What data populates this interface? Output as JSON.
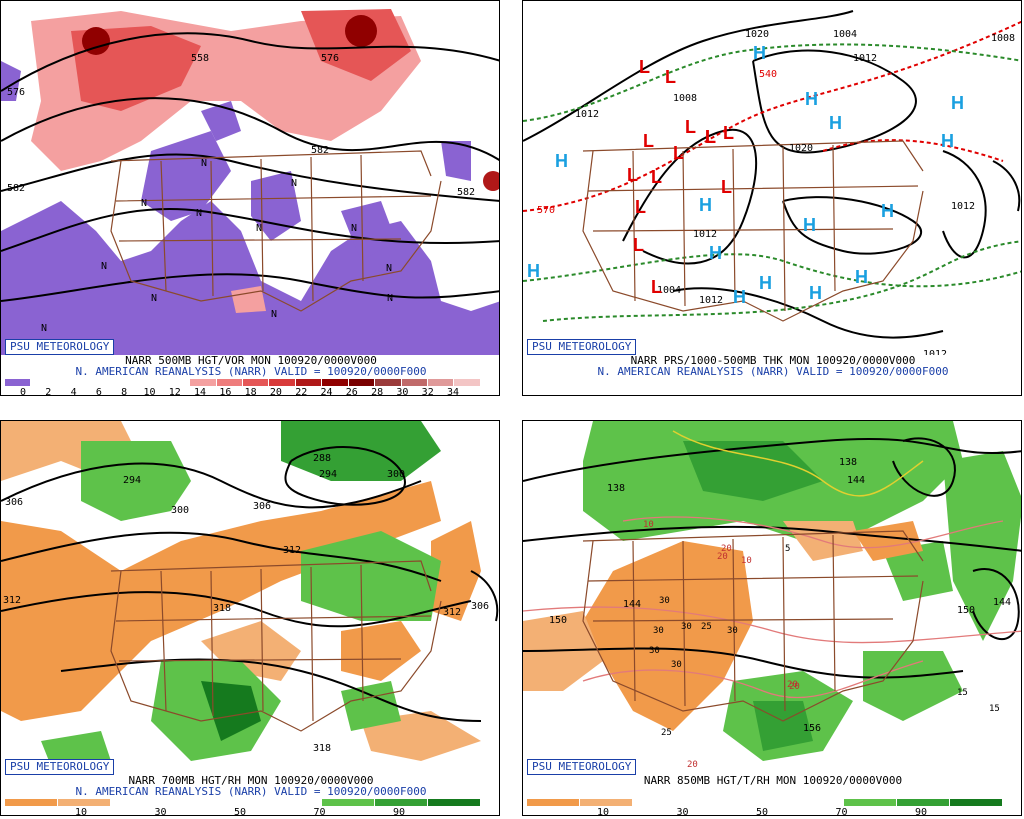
{
  "badge": "PSU METEOROLOGY",
  "colors": {
    "vort_ramp": [
      "#8a63d2",
      "#ffffff",
      "#ffffff",
      "#ffffff",
      "#ffffff",
      "#ffffff",
      "#ffffff",
      "#f4a0a0",
      "#ee7c7c",
      "#e55656",
      "#d83a3a",
      "#b01818",
      "#900000",
      "#7a0000",
      "#9a3a3a",
      "#c06a6a",
      "#e09a9a",
      "#f3c5c5"
    ],
    "rh_ramp": [
      "#f19a4a",
      "#f3b074",
      "#ffffff",
      "#ffffff",
      "#ffffff",
      "#ffffff",
      "#5ec24a",
      "#34a034",
      "#157a1e"
    ],
    "border": "#8b4a2b",
    "contour": "#000000",
    "low": "#e00000",
    "high": "#1aa0e0"
  },
  "panels": [
    {
      "caption1": "NARR 500MB HGT/VOR MON 100920/0000V000",
      "caption2": "N. AMERICAN REANALYSIS (NARR) VALID = 100920/0000F000",
      "colorbar_ticks": [
        "0",
        "2",
        "4",
        "6",
        "8",
        "10",
        "12",
        "14",
        "16",
        "18",
        "20",
        "22",
        "24",
        "26",
        "28",
        "30",
        "32",
        "34"
      ],
      "contour_labels": [
        "558",
        "576",
        "582",
        "582",
        "582",
        "576"
      ],
      "markers": [
        "N",
        "N",
        "N",
        "N",
        "N",
        "N",
        "N",
        "N",
        "N",
        "N",
        "N",
        "N"
      ]
    },
    {
      "caption1": "NARR PRS/1000-500MB THK MON 100920/0000V000",
      "caption2": "N. AMERICAN REANALYSIS (NARR) VALID = 100920/0000F000",
      "contour_labels": [
        "1020",
        "1004",
        "1012",
        "1012",
        "1008",
        "1020",
        "1008",
        "1012",
        "1012",
        "1004",
        "1012",
        "1012",
        "540",
        "570"
      ],
      "lows": [
        "L",
        "L",
        "L",
        "L",
        "L",
        "L",
        "L",
        "L",
        "L",
        "L",
        "L",
        "L",
        "L",
        "L"
      ],
      "highs": [
        "H",
        "H",
        "H",
        "H",
        "H",
        "H",
        "H",
        "H",
        "H",
        "H",
        "H",
        "H",
        "H",
        "H",
        "H"
      ]
    },
    {
      "caption1": "NARR 700MB HGT/RH MON 100920/0000V000",
      "caption2": "N. AMERICAN REANALYSIS (NARR) VALID = 100920/0000F000",
      "colorbar_ticks": [
        "10",
        "30",
        "50",
        "70",
        "90"
      ],
      "contour_labels": [
        "306",
        "294",
        "300",
        "306",
        "312",
        "318",
        "312",
        "312",
        "318",
        "300",
        "288",
        "294",
        "306"
      ]
    },
    {
      "caption1": "NARR 850MB HGT/T/RH MON 100920/0000V000",
      "colorbar_ticks": [
        "10",
        "30",
        "50",
        "70",
        "90"
      ],
      "contour_labels": [
        "138",
        "138",
        "144",
        "150",
        "150",
        "144",
        "156",
        "144",
        "10",
        "10",
        "20",
        "20",
        "5",
        "30",
        "30",
        "30",
        "25",
        "30",
        "30",
        "30",
        "25",
        "20",
        "20",
        "15",
        "15",
        "20"
      ]
    }
  ]
}
